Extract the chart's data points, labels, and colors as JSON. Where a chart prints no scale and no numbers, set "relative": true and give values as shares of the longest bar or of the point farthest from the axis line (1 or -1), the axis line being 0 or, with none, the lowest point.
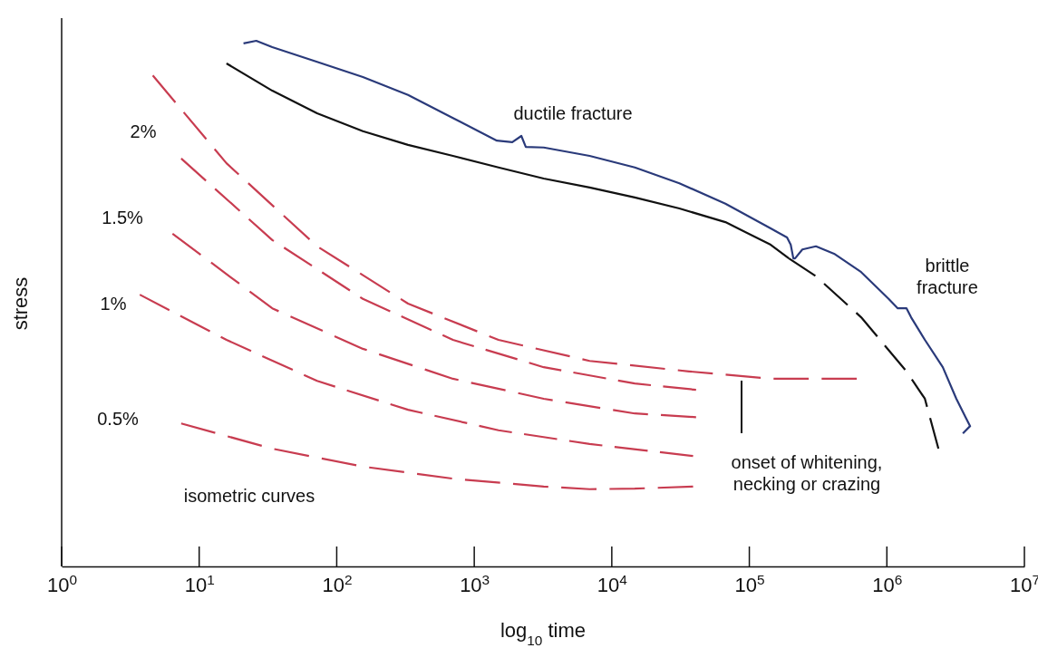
{
  "chart_data": {
    "type": "line",
    "relative": true,
    "xlabel": "log$_{10}$ time",
    "ylabel": "stress",
    "log": "x",
    "xlim": [
      1,
      10000000
    ],
    "xticks": [
      {
        "value": 1,
        "label": "10$^{0}$"
      },
      {
        "value": 10,
        "label": "10$^{1}$"
      },
      {
        "value": 100,
        "label": "10$^{2}$"
      },
      {
        "value": 1000,
        "label": "10$^{3}$"
      },
      {
        "value": 10000,
        "label": "10$^{4}$"
      },
      {
        "value": 100000,
        "label": "10$^{5}$"
      },
      {
        "value": 1000000,
        "label": "10$^{6}$"
      },
      {
        "value": 10000000,
        "label": "10$^{7}$"
      }
    ],
    "series": [
      {
        "color": "#2a3a7a",
        "line_style": "solid",
        "x": [
          21,
          26,
          34,
          72,
          155,
          330,
          700,
          1460,
          1890,
          2200,
          2370,
          3200,
          6900,
          14700,
          31000,
          67000,
          143000,
          188000,
          200000,
          209000,
          215000,
          243000,
          305000,
          413000,
          650000,
          1030000,
          1200000,
          1390000,
          1500000,
          1890000,
          2550000,
          3200000,
          3730000,
          4030000,
          3570000
        ],
        "values": [
          0.995,
          1,
          0.988,
          0.96,
          0.931,
          0.897,
          0.853,
          0.81,
          0.807,
          0.819,
          0.798,
          0.797,
          0.781,
          0.759,
          0.729,
          0.69,
          0.643,
          0.626,
          0.612,
          0.586,
          0.586,
          0.603,
          0.609,
          0.595,
          0.56,
          0.509,
          0.491,
          0.491,
          0.474,
          0.431,
          0.379,
          0.319,
          0.284,
          0.267,
          0.253
        ]
      },
      {
        "color": "#111111",
        "line_style": "solid",
        "x": [
          15.8,
          34,
          72,
          155,
          330,
          700,
          1500,
          3200,
          6900,
          14700,
          31000,
          67000,
          143000,
          194000
        ],
        "values": [
          0.957,
          0.905,
          0.862,
          0.828,
          0.802,
          0.781,
          0.759,
          0.738,
          0.721,
          0.702,
          0.681,
          0.655,
          0.612,
          0.586
        ]
      },
      {
        "color": "#111111",
        "line_style": "dashed",
        "x": [
          194000,
          305000,
          650000,
          1390000,
          1890000,
          2370000
        ],
        "values": [
          0.586,
          0.552,
          0.474,
          0.371,
          0.319,
          0.224
        ]
      },
      {
        "color": "#c83c50",
        "line_style": "dashed",
        "x": [
          4.6,
          15.8,
          72,
          330,
          1500,
          6900,
          36500,
          143000,
          604000
        ],
        "values": [
          0.934,
          0.767,
          0.609,
          0.5,
          0.431,
          0.391,
          0.371,
          0.357,
          0.357
        ]
      },
      {
        "color": "#c83c50",
        "line_style": "dashed",
        "x": [
          7.4,
          34,
          155,
          700,
          3200,
          14700,
          41000
        ],
        "values": [
          0.776,
          0.621,
          0.509,
          0.431,
          0.379,
          0.348,
          0.336
        ]
      },
      {
        "color": "#c83c50",
        "line_style": "dashed",
        "x": [
          6.4,
          34,
          155,
          700,
          3200,
          14700,
          41000
        ],
        "values": [
          0.633,
          0.491,
          0.414,
          0.357,
          0.319,
          0.291,
          0.284
        ]
      },
      {
        "color": "#c83c50",
        "line_style": "dashed",
        "x": [
          3.7,
          15.8,
          72,
          330,
          1500,
          6900,
          39000
        ],
        "values": [
          0.517,
          0.431,
          0.353,
          0.298,
          0.259,
          0.233,
          0.21
        ]
      },
      {
        "color": "#c83c50",
        "line_style": "dashed",
        "x": [
          7.4,
          34,
          155,
          700,
          3200,
          6900,
          14700,
          39000
        ],
        "values": [
          0.272,
          0.224,
          0.19,
          0.167,
          0.152,
          0.147,
          0.148,
          0.152
        ]
      }
    ],
    "annotations": [
      "ductile fracture",
      "brittle fracture",
      "2%",
      "1.5%",
      "1%",
      "0.5%",
      "isometric curves",
      "onset of whitening, necking or crazing"
    ]
  }
}
